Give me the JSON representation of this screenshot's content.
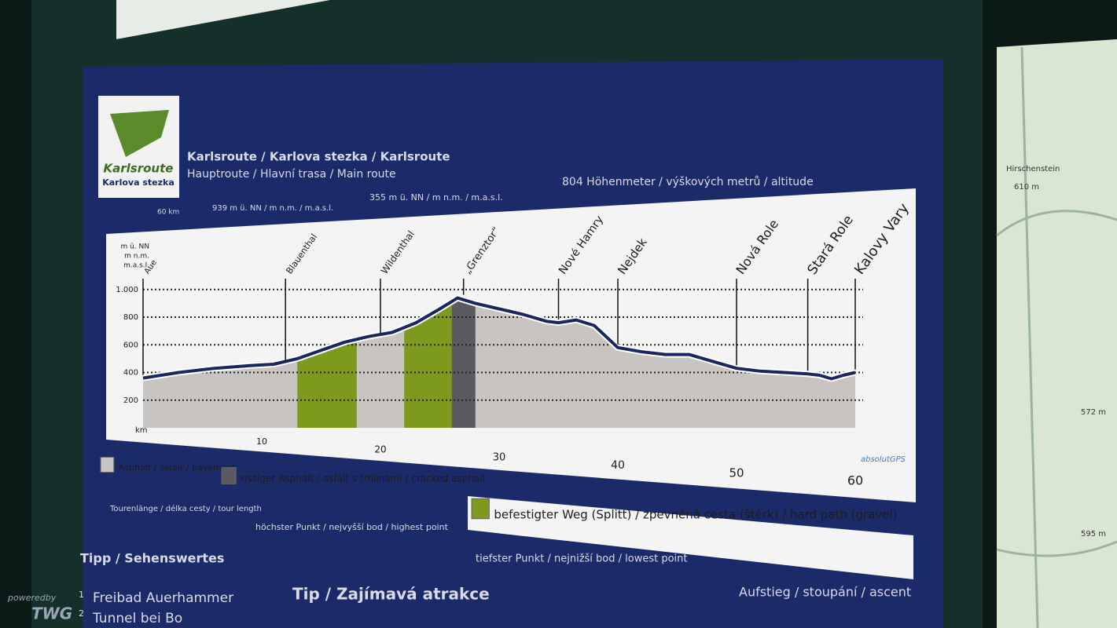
{
  "logo": {
    "line1": "Karlsroute",
    "line2": "Karlova stezka"
  },
  "header": {
    "title": "Karlsroute / Karlova stezka / Karlsroute",
    "subtitle": "Hauptroute / Hlavní trasa / Main route"
  },
  "stats": {
    "length": "60 km",
    "highest": "939 m ü. NN / m n.m. / m.a.s.l.",
    "lowest": "355 m ü. NN / m n.m. / m.a.s.l.",
    "ascent": "804 Höhenmeter / výškových metrů / altitude"
  },
  "chart_data": {
    "type": "area",
    "x_label": "km",
    "y_label": [
      "m ü. NN",
      "m n.m.",
      "m.a.s.l."
    ],
    "brand": "absolutGPS",
    "x": [
      0,
      3,
      6,
      9,
      11,
      13,
      15,
      17,
      19,
      21,
      23,
      25,
      26.5,
      28,
      30,
      32,
      34,
      35,
      36.5,
      38,
      40,
      42,
      44,
      46,
      48,
      50,
      52,
      54,
      56,
      57,
      58,
      59,
      60
    ],
    "values": [
      360,
      400,
      430,
      450,
      460,
      500,
      560,
      620,
      660,
      690,
      760,
      860,
      939,
      900,
      860,
      820,
      770,
      760,
      780,
      740,
      580,
      550,
      530,
      530,
      480,
      430,
      410,
      400,
      390,
      380,
      355,
      380,
      400
    ],
    "color": "#1a2660",
    "fill": "#c9c5c3",
    "xlim": [
      0,
      60
    ],
    "ylim": [
      0,
      1050
    ],
    "xticks": [
      10,
      20,
      30,
      40,
      50,
      60
    ],
    "yticks": [
      200,
      400,
      600,
      800,
      {
        "value": 1000,
        "label": "1.000"
      }
    ],
    "grid": true,
    "places": [
      {
        "name": "Aue",
        "km": 0
      },
      {
        "name": "Blauenthal",
        "km": 12
      },
      {
        "name": "Wildenthal",
        "km": 20
      },
      {
        "name": "„Grenztor“",
        "km": 27
      },
      {
        "name": "Nové Hamry",
        "km": 35
      },
      {
        "name": "Nejdek",
        "km": 40
      },
      {
        "name": "Nová Role",
        "km": 50
      },
      {
        "name": "Stará Role",
        "km": 56
      },
      {
        "name": "Kalovy Vary",
        "km": 60
      }
    ],
    "surfaces": [
      {
        "name": "Asphalt / asfalt / pavement",
        "color": "#c8c4c2",
        "ranges": [
          [
            0,
            13
          ],
          [
            18,
            22
          ],
          [
            28,
            60
          ]
        ]
      },
      {
        "name": "rissiger Asphalt / asfalt s trhlinami / cracked asphalt",
        "color": "#5b5a60",
        "ranges": [
          [
            26,
            28
          ]
        ]
      },
      {
        "name": "befestigter Weg (Splitt) / zpevněná cesta (štěrk) / hard path (gravel)",
        "color": "#7d9a1e",
        "ranges": [
          [
            13,
            18
          ],
          [
            22,
            26
          ]
        ]
      }
    ]
  },
  "footnotes": {
    "length": "Tourenlänge / délka cesty / tour length",
    "highest": "höchster Punkt / nejvyšší bod / highest point",
    "lowest": "tiefster Punkt / nejnižší bod / lowest point",
    "ascent": "Aufstieg / stoupání / ascent"
  },
  "tips": {
    "title_de": "Tipp / Sehenswertes",
    "items": [
      {
        "number": 1,
        "text": "Freibad Auerhammer"
      },
      {
        "number": 2,
        "text": "Tunnel bei Bo"
      }
    ],
    "title_cz": "Tip / Zajímavá atrakce"
  },
  "map": {
    "labels": [
      "Hirschenstein",
      "610 m",
      "572 m",
      "595 m"
    ]
  },
  "watermark": {
    "line1": "poweredby",
    "line2": "TWG"
  }
}
